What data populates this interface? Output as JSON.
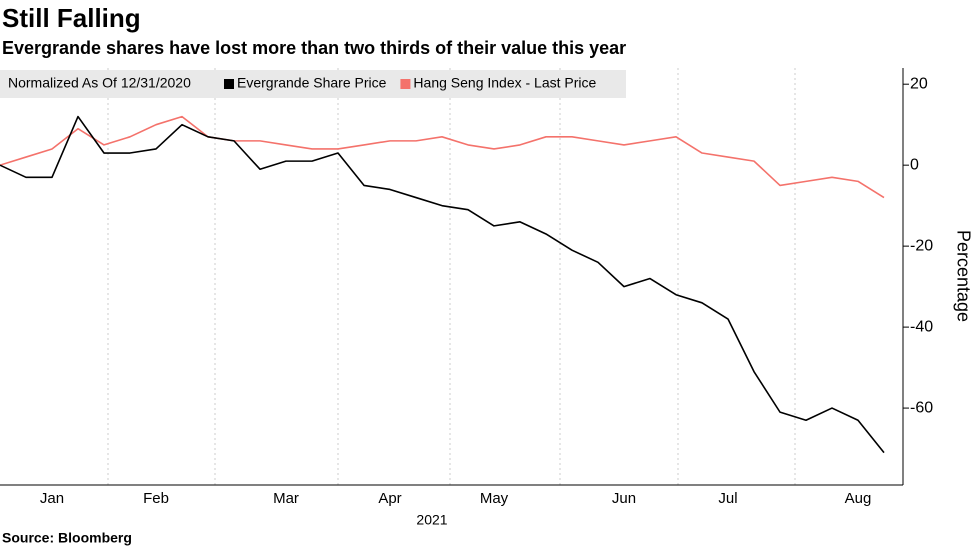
{
  "chart_data": {
    "type": "line",
    "title": "Still Falling",
    "subtitle": "Evergrande shares have lost more than two thirds of their value this year",
    "legend_title": "Normalized As Of 12/31/2020",
    "x_label": "2021",
    "y_label": "Percentage",
    "source": "Source: Bloomberg",
    "categories": [
      null,
      null,
      "Jan",
      null,
      null,
      null,
      "Feb",
      null,
      null,
      null,
      null,
      "Mar",
      null,
      null,
      null,
      "Apr",
      null,
      null,
      null,
      "May",
      null,
      null,
      null,
      null,
      "Jun",
      null,
      null,
      null,
      "Jul",
      null,
      null,
      null,
      null,
      "Aug",
      null
    ],
    "series": [
      {
        "name": "Evergrande Share Price",
        "color": "#000000",
        "values": [
          0,
          -3,
          -3,
          12,
          3,
          3,
          4,
          10,
          7,
          6,
          -1,
          1,
          1,
          3,
          -5,
          -6,
          -8,
          -10,
          -11,
          -15,
          -14,
          -17,
          -21,
          -24,
          -30,
          -28,
          -32,
          -34,
          -38,
          -51,
          -61,
          -63,
          -60,
          -63,
          -71
        ]
      },
      {
        "name": "Hang Seng Index - Last Price",
        "color": "#f4726b",
        "values": [
          0,
          2,
          4,
          9,
          5,
          7,
          10,
          12,
          7,
          6,
          6,
          5,
          4,
          4,
          5,
          6,
          6,
          7,
          5,
          4,
          5,
          7,
          7,
          6,
          5,
          6,
          7,
          3,
          2,
          1,
          -5,
          -4,
          -3,
          -4,
          -8
        ]
      }
    ],
    "ylim": [
      -79,
      24
    ],
    "yticks": [
      20,
      0,
      -20,
      -40,
      -60
    ],
    "grid": false,
    "legend": "top-left"
  }
}
